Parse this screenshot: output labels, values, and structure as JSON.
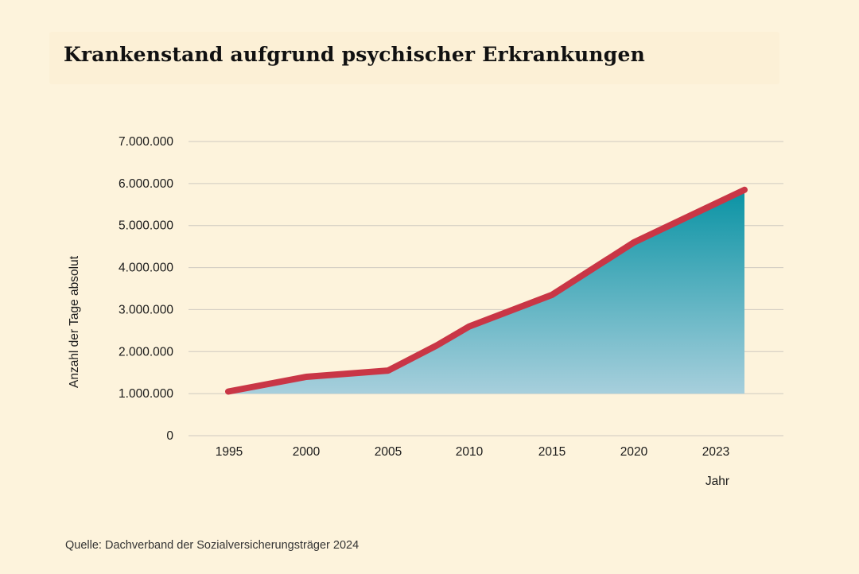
{
  "title": "Krankenstand aufgrund psychischer Erkrankungen",
  "source": "Quelle: Dachverband der Sozialversicherungsträger 2024",
  "colors": {
    "background": "#fdf3dc",
    "line": "#c93646",
    "area_top": "#0a93a4",
    "area_bottom": "#a7cfdc",
    "grid": "#cfcac0"
  },
  "chart_data": {
    "type": "area",
    "title": "Krankenstand aufgrund psychischer Erkrankungen",
    "xlabel": "Jahr",
    "ylabel": "Anzahl der Tage absolut",
    "x_ticks": [
      "1995",
      "2000",
      "2005",
      "2010",
      "2015",
      "2020",
      "2023"
    ],
    "y_ticks": [
      "0",
      "1.000.000",
      "2.000.000",
      "3.000.000",
      "4.000.000",
      "5.000.000",
      "6.000.000",
      "7.000.000"
    ],
    "ylim": [
      0,
      7000000
    ],
    "grid": true,
    "series": [
      {
        "x": [
          1995,
          2000,
          2005,
          2008,
          2010,
          2015,
          2020,
          2023
        ],
        "values": [
          1050000,
          1400000,
          1550000,
          2150000,
          2600000,
          3350000,
          4600000,
          5850000
        ]
      }
    ]
  }
}
